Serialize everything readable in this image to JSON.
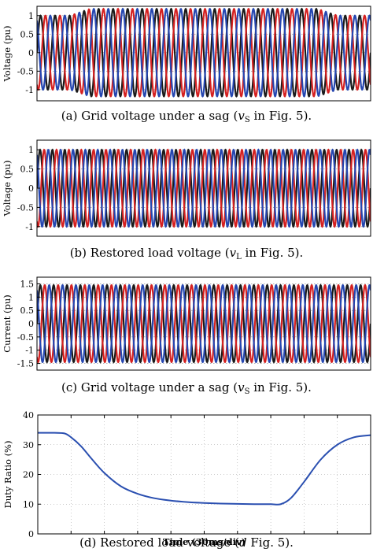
{
  "charts": [
    {
      "type": "line",
      "caption": {
        "prefix": "(a)  Grid voltage under a sag (",
        "vec": "v",
        "sub": "S",
        "suffix": " in Fig. 5)."
      },
      "ylabel": "Voltage (pu)",
      "yticks": [
        "1",
        "0.5",
        "0",
        "-0.5",
        "-1"
      ],
      "ytick_values": [
        1,
        0.5,
        0,
        -0.5,
        -1
      ],
      "ylim": [
        -1.3,
        1.25
      ],
      "cycles": 23,
      "series": [
        {
          "color": "#1a1a1a",
          "phase_deg": 0
        },
        {
          "color": "#d42020",
          "phase_deg": -120
        },
        {
          "color": "#2546b0",
          "phase_deg": 120
        }
      ],
      "amplitude_profile": [
        [
          0,
          1.0
        ],
        [
          0.1,
          1.0
        ],
        [
          0.16,
          1.18
        ],
        [
          0.84,
          1.18
        ],
        [
          0.9,
          1.0
        ],
        [
          1,
          1.0
        ]
      ],
      "reference_lines": [
        1,
        -1
      ]
    },
    {
      "type": "line",
      "caption": {
        "prefix": "(b)  Restored load voltage (",
        "vec": "v",
        "sub": "L",
        "suffix": " in Fig. 5)."
      },
      "ylabel": "Voltage (pu)",
      "yticks": [
        "1",
        "0.5",
        "0",
        "-0.5",
        "-1"
      ],
      "ytick_values": [
        1,
        0.5,
        0,
        -0.5,
        -1
      ],
      "ylim": [
        -1.25,
        1.25
      ],
      "cycles": 27,
      "series": [
        {
          "color": "#1a1a1a",
          "phase_deg": 0
        },
        {
          "color": "#d42020",
          "phase_deg": -120
        },
        {
          "color": "#2546b0",
          "phase_deg": 120
        }
      ],
      "amplitude_profile": [
        [
          0,
          1.0
        ],
        [
          1,
          1.0
        ]
      ],
      "reference_lines": [
        1,
        -1
      ]
    },
    {
      "type": "line",
      "caption": {
        "prefix": "(c)  Grid voltage under a sag (",
        "vec": "v",
        "sub": "S",
        "suffix": " in Fig. 5)."
      },
      "ylabel": "Current (pu)",
      "yticks": [
        "1.5",
        "1",
        "0.5",
        "0",
        "-0.5",
        "-1",
        "-1.5"
      ],
      "ytick_values": [
        1.5,
        1,
        0.5,
        0,
        -0.5,
        -1,
        -1.5
      ],
      "ylim": [
        -1.75,
        1.75
      ],
      "cycles": 25,
      "series": [
        {
          "color": "#1a1a1a",
          "phase_deg": 0
        },
        {
          "color": "#d42020",
          "phase_deg": -120
        },
        {
          "color": "#2546b0",
          "phase_deg": 120
        }
      ],
      "amplitude_profile": [
        [
          0,
          1.45
        ],
        [
          1,
          1.45
        ]
      ],
      "reference_lines": [
        1.5,
        -1.5
      ]
    }
  ],
  "chart_data": [
    {
      "type": "line",
      "ylabel": "Voltage (pu)",
      "ylim": [
        -1.3,
        1.25
      ],
      "series": [
        {
          "values_note": "three-phase sinusoids"
        }
      ]
    },
    {
      "type": "line",
      "ylabel": "Voltage (pu)",
      "ylim": [
        -1.25,
        1.25
      ]
    },
    {
      "type": "line",
      "ylabel": "Current (pu)",
      "ylim": [
        -1.75,
        1.75
      ]
    },
    {
      "type": "line",
      "xlabel": "Time (30ms/div)",
      "ylabel": "Duty Ratio (%)",
      "ylim": [
        0,
        40
      ],
      "yticks": [
        0,
        10,
        20,
        30,
        40
      ],
      "x_divisions": 10,
      "x": [
        0,
        0.5,
        0.8,
        1.0,
        1.3,
        1.6,
        2.0,
        2.5,
        3.0,
        3.5,
        4.0,
        4.5,
        5.0,
        5.5,
        6.0,
        6.5,
        7.0,
        7.3,
        7.6,
        8.0,
        8.5,
        9.0,
        9.5,
        10.0
      ],
      "series": [
        {
          "color": "#2a4fb0",
          "values": [
            34,
            34,
            33.8,
            32.5,
            29.5,
            25.5,
            20.5,
            16.0,
            13.5,
            12.0,
            11.2,
            10.7,
            10.4,
            10.2,
            10.1,
            10.0,
            10.0,
            10.0,
            12.0,
            17.5,
            25.0,
            30.0,
            32.5,
            33.2
          ]
        }
      ],
      "caption": {
        "prefix": "(d)  Restored load voltage (",
        "italic": "d",
        "suffix": " Fig. 5)."
      }
    }
  ]
}
